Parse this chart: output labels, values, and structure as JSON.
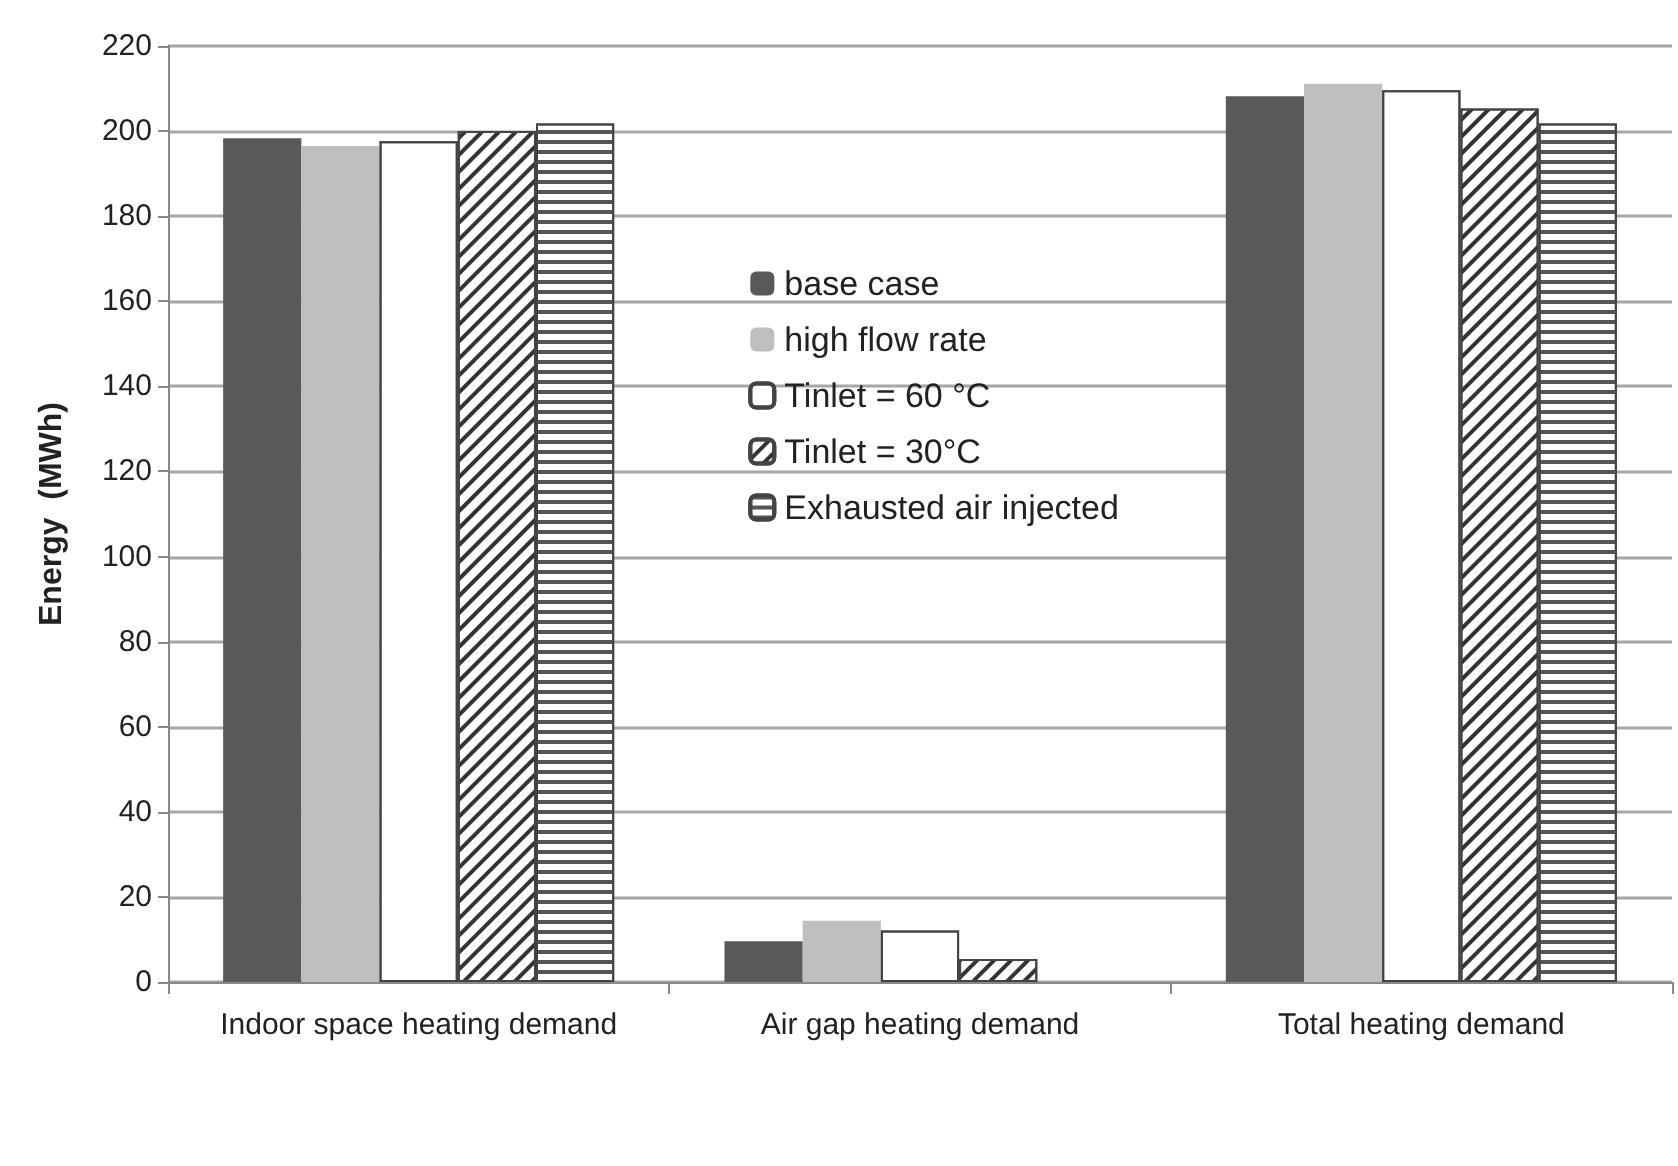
{
  "chart_data": {
    "type": "bar",
    "ylabel": "Energy  (MWh)",
    "categories": [
      "Indoor space heating demand",
      "Air gap heating demand",
      "Total heating demand"
    ],
    "series": [
      {
        "name": "base case",
        "color": "#595959",
        "values": [
          198.3,
          9.6,
          208.2
        ]
      },
      {
        "name": "high flow rate",
        "color": "#bfbfbf",
        "values": [
          196.5,
          14.4,
          211.1
        ]
      },
      {
        "name": "Tinlet = 60 °C",
        "color": "#ffffff",
        "values": [
          197.6,
          12.1,
          209.6
        ]
      },
      {
        "name": "Tinlet = 30°C",
        "color": "#ffffff",
        "values": [
          200,
          5.4,
          205.3
        ]
      },
      {
        "name": "Exhausted air injected",
        "color": "#ffffff",
        "values": [
          201.8,
          null,
          201.8
        ]
      }
    ],
    "ylim": [
      0,
      220
    ],
    "yticks": [
      0,
      20,
      40,
      60,
      80,
      100,
      120,
      140,
      160,
      180,
      200,
      220
    ],
    "grid": "y",
    "legend": "top"
  }
}
